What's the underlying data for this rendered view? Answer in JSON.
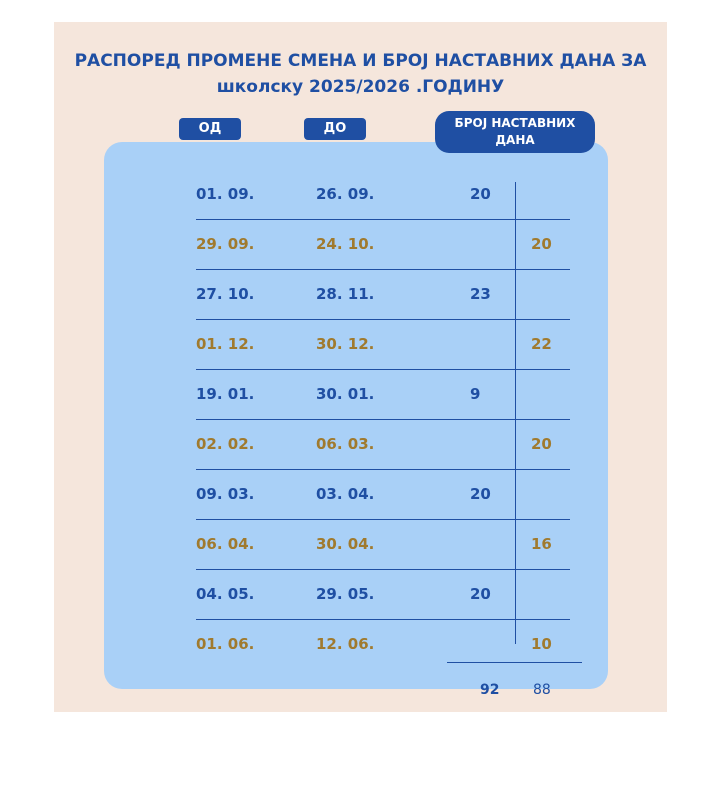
{
  "title": {
    "line1": "РАСПОРЕД ПРОМЕНЕ СМЕНА И БРОЈ НАСТАВНИХ ДАНА ЗА",
    "line2": "школску 2025/2026 .ГОДИНУ"
  },
  "headers": {
    "from": "ОД",
    "to": "ДО",
    "days_line1": "БРОЈ НАСТАВНИХ",
    "days_line2": "ДАНА"
  },
  "colors": {
    "blue": "#1f4fa3",
    "gold": "#a07a2e",
    "panel": "#a9d0f7",
    "card": "#f5e6dc"
  },
  "rows": [
    {
      "from": "01. 09.",
      "to": "26. 09.",
      "days": "20",
      "column": "left",
      "color": "blue"
    },
    {
      "from": "29. 09.",
      "to": "24. 10.",
      "days": "20",
      "column": "right",
      "color": "gold"
    },
    {
      "from": "27. 10.",
      "to": "28. 11.",
      "days": "23",
      "column": "left",
      "color": "blue"
    },
    {
      "from": "01. 12.",
      "to": "30. 12.",
      "days": "22",
      "column": "right",
      "color": "gold"
    },
    {
      "from": "19. 01.",
      "to": "30. 01.",
      "days": "9",
      "column": "left",
      "color": "blue"
    },
    {
      "from": "02. 02.",
      "to": "06. 03.",
      "days": "20",
      "column": "right",
      "color": "gold"
    },
    {
      "from": "09. 03.",
      "to": "03. 04.",
      "days": "20",
      "column": "left",
      "color": "blue"
    },
    {
      "from": "06. 04.",
      "to": "30. 04.",
      "days": "16",
      "column": "right",
      "color": "gold"
    },
    {
      "from": "04. 05.",
      "to": "29. 05.",
      "days": "20",
      "column": "left",
      "color": "blue"
    },
    {
      "from": "01. 06.",
      "to": "12. 06.",
      "days": "10",
      "column": "right",
      "color": "gold"
    }
  ],
  "totals": {
    "left": "92",
    "right": "88"
  }
}
